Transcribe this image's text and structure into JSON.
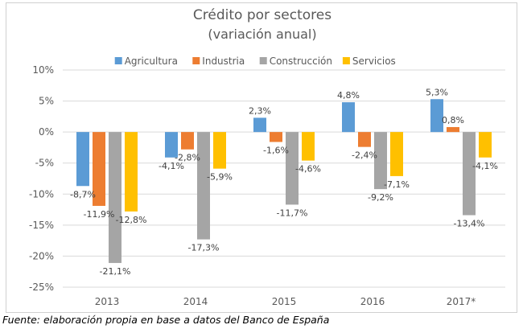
{
  "chart_data": {
    "type": "bar",
    "title": "Crédito por sectores",
    "subtitle": "(variación anual)",
    "xlabel": "",
    "ylabel": "",
    "categories": [
      "2013",
      "2014",
      "2015",
      "2016",
      "2017*"
    ],
    "series": [
      {
        "name": "Agricultura",
        "color": "#5B9BD5",
        "values": [
          -8.7,
          -4.1,
          2.3,
          4.8,
          5.3
        ],
        "labels": [
          "-8,7%",
          "-4,1%",
          "2,3%",
          "4,8%",
          "5,3%"
        ]
      },
      {
        "name": "Industria",
        "color": "#ED7D31",
        "values": [
          -11.9,
          -2.8,
          -1.6,
          -2.4,
          0.8
        ],
        "labels": [
          "-11,9%",
          "-2,8%",
          "-1,6%",
          "-2,4%",
          "0,8%"
        ]
      },
      {
        "name": "Construcción",
        "color": "#A5A5A5",
        "values": [
          -21.1,
          -17.3,
          -11.7,
          -9.2,
          -13.4
        ],
        "labels": [
          "-21,1%",
          "-17,3%",
          "-11,7%",
          "-9,2%",
          "-13,4%"
        ]
      },
      {
        "name": "Servicios",
        "color": "#FFC000",
        "values": [
          -12.8,
          -5.9,
          -4.6,
          -7.1,
          -4.1
        ],
        "labels": [
          "-12,8%",
          "-5,9%",
          "-4,6%",
          "-7,1%",
          "-4,1%"
        ]
      }
    ],
    "ylim": [
      -25,
      10
    ],
    "yticks": [
      10,
      5,
      0,
      -5,
      -10,
      -15,
      -20,
      -25
    ],
    "ytick_labels": [
      "10%",
      "5%",
      "0%",
      "-5%",
      "-10%",
      "-15%",
      "-20%",
      "-25%"
    ],
    "grid": true,
    "legend_position": "top"
  },
  "source_note": "Fuente: elaboración propia en base a datos del Banco de España"
}
